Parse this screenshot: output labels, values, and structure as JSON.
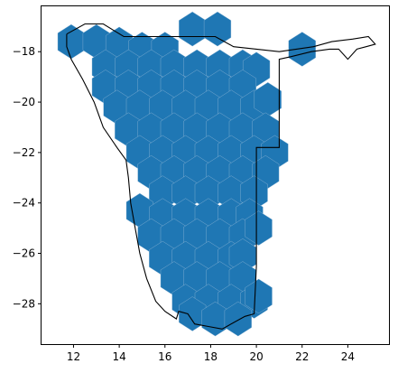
{
  "chart_data": {
    "type": "map",
    "title": "",
    "xlabel": "",
    "ylabel": "",
    "xlim": [
      10.6,
      25.8
    ],
    "ylim": [
      -29.6,
      -16.2
    ],
    "grid": false,
    "legend": "none",
    "x_ticks": [
      12,
      14,
      16,
      18,
      20,
      22,
      24
    ],
    "y_ticks": [
      -18,
      -20,
      -22,
      -24,
      -26,
      -28
    ],
    "x_tick_labels": [
      "12",
      "14",
      "16",
      "18",
      "20",
      "22",
      "24"
    ],
    "y_tick_labels": [
      "−18",
      "−20",
      "−22",
      "−24",
      "−26",
      "−28"
    ],
    "hex_color": "#1f77b4",
    "hex_edge_color": "#8fb6d6",
    "outline_color": "#000000",
    "hexagon_radius": 0.68,
    "hexagon_centers": [
      [
        11.9,
        -17.6
      ],
      [
        13.0,
        -17.6
      ],
      [
        14.0,
        -17.7
      ],
      [
        15.0,
        -17.9
      ],
      [
        16.0,
        -17.9
      ],
      [
        17.2,
        -17.1
      ],
      [
        18.3,
        -17.1
      ],
      [
        22.0,
        -17.9
      ],
      [
        13.4,
        -18.6
      ],
      [
        14.4,
        -18.6
      ],
      [
        15.4,
        -18.6
      ],
      [
        16.4,
        -18.6
      ],
      [
        17.4,
        -18.6
      ],
      [
        18.4,
        -18.6
      ],
      [
        19.4,
        -18.6
      ],
      [
        20.0,
        -18.7
      ],
      [
        13.4,
        -19.4
      ],
      [
        14.4,
        -19.4
      ],
      [
        15.4,
        -19.4
      ],
      [
        16.4,
        -19.4
      ],
      [
        17.4,
        -19.4
      ],
      [
        18.4,
        -19.4
      ],
      [
        19.4,
        -19.4
      ],
      [
        13.9,
        -20.2
      ],
      [
        14.9,
        -20.2
      ],
      [
        15.9,
        -20.2
      ],
      [
        16.9,
        -20.2
      ],
      [
        17.9,
        -20.2
      ],
      [
        18.9,
        -20.2
      ],
      [
        19.9,
        -20.2
      ],
      [
        20.5,
        -19.9
      ],
      [
        14.4,
        -21.1
      ],
      [
        15.4,
        -21.1
      ],
      [
        16.4,
        -21.1
      ],
      [
        17.4,
        -21.1
      ],
      [
        18.4,
        -21.1
      ],
      [
        19.4,
        -21.1
      ],
      [
        20.4,
        -21.1
      ],
      [
        14.9,
        -22.0
      ],
      [
        15.9,
        -22.0
      ],
      [
        16.9,
        -22.0
      ],
      [
        17.9,
        -22.0
      ],
      [
        18.9,
        -22.0
      ],
      [
        19.9,
        -22.0
      ],
      [
        20.8,
        -22.0
      ],
      [
        15.4,
        -22.8
      ],
      [
        16.4,
        -22.8
      ],
      [
        17.4,
        -22.8
      ],
      [
        18.4,
        -22.8
      ],
      [
        19.4,
        -22.8
      ],
      [
        20.4,
        -22.8
      ],
      [
        15.9,
        -23.6
      ],
      [
        16.9,
        -23.6
      ],
      [
        17.9,
        -23.6
      ],
      [
        18.9,
        -23.6
      ],
      [
        19.9,
        -23.6
      ],
      [
        14.9,
        -24.3
      ],
      [
        15.9,
        -24.5
      ],
      [
        16.9,
        -24.5
      ],
      [
        17.9,
        -24.5
      ],
      [
        18.9,
        -24.5
      ],
      [
        19.7,
        -24.5
      ],
      [
        15.4,
        -25.3
      ],
      [
        16.4,
        -25.3
      ],
      [
        17.4,
        -25.3
      ],
      [
        18.4,
        -25.3
      ],
      [
        19.4,
        -25.3
      ],
      [
        20.1,
        -25.0
      ],
      [
        15.9,
        -26.2
      ],
      [
        16.9,
        -26.2
      ],
      [
        17.9,
        -26.2
      ],
      [
        18.9,
        -26.2
      ],
      [
        19.4,
        -26.1
      ],
      [
        16.4,
        -27.0
      ],
      [
        17.4,
        -27.0
      ],
      [
        18.4,
        -27.0
      ],
      [
        19.4,
        -27.0
      ],
      [
        16.9,
        -27.9
      ],
      [
        17.9,
        -27.9
      ],
      [
        18.9,
        -27.9
      ],
      [
        19.9,
        -27.9
      ],
      [
        20.1,
        -27.7
      ],
      [
        17.2,
        -28.4
      ],
      [
        18.2,
        -28.6
      ],
      [
        19.2,
        -28.6
      ]
    ],
    "outline": [
      [
        11.7,
        -17.3
      ],
      [
        12.5,
        -16.9
      ],
      [
        13.3,
        -16.9
      ],
      [
        14.2,
        -17.4
      ],
      [
        16.0,
        -17.4
      ],
      [
        18.2,
        -17.4
      ],
      [
        19.0,
        -17.8
      ],
      [
        21.0,
        -18.0
      ],
      [
        22.5,
        -17.8
      ],
      [
        23.3,
        -17.6
      ],
      [
        24.2,
        -17.5
      ],
      [
        24.9,
        -17.4
      ],
      [
        25.2,
        -17.7
      ],
      [
        24.8,
        -17.8
      ],
      [
        24.4,
        -17.9
      ],
      [
        24.0,
        -18.3
      ],
      [
        23.6,
        -17.9
      ],
      [
        23.2,
        -17.9
      ],
      [
        22.4,
        -18.0
      ],
      [
        21.5,
        -18.2
      ],
      [
        21.0,
        -18.3
      ],
      [
        21.0,
        -21.8
      ],
      [
        20.0,
        -21.8
      ],
      [
        20.0,
        -26.5
      ],
      [
        19.9,
        -28.4
      ],
      [
        19.5,
        -28.5
      ],
      [
        18.5,
        -29.0
      ],
      [
        17.9,
        -28.9
      ],
      [
        17.3,
        -28.8
      ],
      [
        17.0,
        -28.4
      ],
      [
        16.6,
        -28.3
      ],
      [
        16.5,
        -28.6
      ],
      [
        16.0,
        -28.3
      ],
      [
        15.6,
        -27.9
      ],
      [
        15.2,
        -27.0
      ],
      [
        14.9,
        -26.0
      ],
      [
        14.7,
        -25.0
      ],
      [
        14.5,
        -24.0
      ],
      [
        14.4,
        -23.0
      ],
      [
        14.3,
        -22.3
      ],
      [
        13.9,
        -21.8
      ],
      [
        13.3,
        -21.0
      ],
      [
        12.9,
        -20.0
      ],
      [
        12.4,
        -19.1
      ],
      [
        11.9,
        -18.3
      ],
      [
        11.7,
        -17.8
      ],
      [
        11.7,
        -17.3
      ]
    ]
  }
}
